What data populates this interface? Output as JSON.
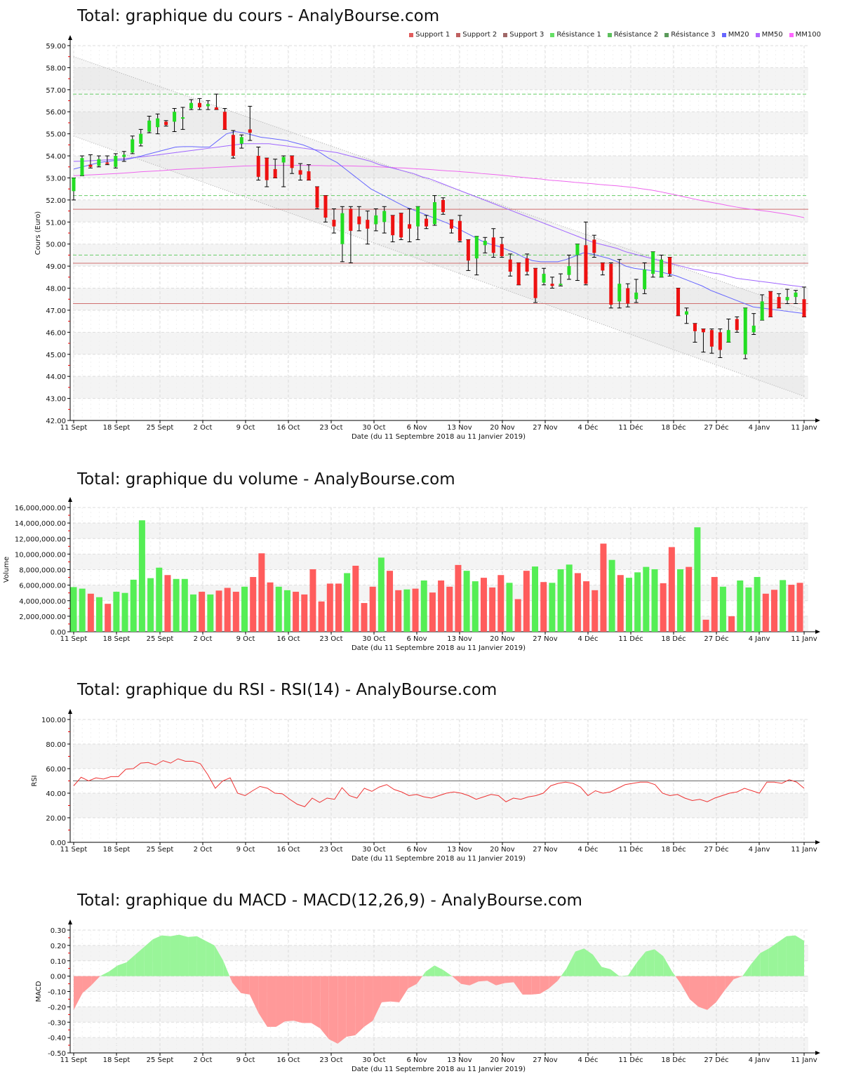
{
  "chart_data": [
    {
      "type": "candlestick",
      "title": "Total: graphique du cours - AnalyBourse.com",
      "xlabel": "Date (du 11 Septembre 2018 au 11 Janvier 2019)",
      "ylabel": "Cours (Euro)",
      "ylim": [
        42,
        59
      ],
      "yticks": [
        "42.00",
        "43.00",
        "44.00",
        "45.00",
        "46.00",
        "47.00",
        "48.00",
        "49.00",
        "50.00",
        "51.00",
        "52.00",
        "53.00",
        "54.00",
        "55.00",
        "56.00",
        "57.00",
        "58.00",
        "59.00"
      ],
      "xticks": [
        "11 Sept",
        "18 Sept",
        "25 Sept",
        "2 Oct",
        "9 Oct",
        "16 Oct",
        "23 Oct",
        "30 Oct",
        "6 Nov",
        "13 Nov",
        "20 Nov",
        "27 Nov",
        "4 Déc",
        "11 Déc",
        "18 Déc",
        "27 Déc",
        "4 Janv",
        "11 Janv"
      ],
      "legend": [
        {
          "name": "Support 1",
          "color": "#e05c5c"
        },
        {
          "name": "Support 2",
          "color": "#c06060"
        },
        {
          "name": "Support 3",
          "color": "#a06868"
        },
        {
          "name": "Résistance 1",
          "color": "#66e066"
        },
        {
          "name": "Résistance 2",
          "color": "#5cc05c"
        },
        {
          "name": "Résistance 3",
          "color": "#5a9a5a"
        },
        {
          "name": "MM20",
          "color": "#6666ff"
        },
        {
          "name": "MM50",
          "color": "#b066ff"
        },
        {
          "name": "MM100",
          "color": "#ff66ff"
        }
      ],
      "levels": {
        "support": [
          51.58,
          49.13,
          47.3
        ],
        "resistance": [
          56.8,
          52.2,
          49.5
        ]
      },
      "candles": [
        [
          52.4,
          53.0,
          52.0,
          53.0
        ],
        [
          53.1,
          53.9,
          53.1,
          54.0
        ],
        [
          53.6,
          53.5,
          53.45,
          54.05
        ],
        [
          53.55,
          53.85,
          53.5,
          54.0
        ],
        [
          53.7,
          53.65,
          53.6,
          54.0
        ],
        [
          53.5,
          54.0,
          53.45,
          54.1
        ],
        [
          53.95,
          54.05,
          53.75,
          54.2
        ],
        [
          54.15,
          54.75,
          54.1,
          54.9
        ],
        [
          54.55,
          55.0,
          54.45,
          55.2
        ],
        [
          55.1,
          55.6,
          55.05,
          55.8
        ],
        [
          55.3,
          55.7,
          55.0,
          55.9
        ],
        [
          55.55,
          55.4,
          55.35,
          55.6
        ],
        [
          55.55,
          56.0,
          55.1,
          56.15
        ],
        [
          55.7,
          55.75,
          55.2,
          56.2
        ],
        [
          56.15,
          56.4,
          56.1,
          56.55
        ],
        [
          56.4,
          56.2,
          56.1,
          56.6
        ],
        [
          56.25,
          56.35,
          56.1,
          56.5
        ],
        [
          56.2,
          56.1,
          56.1,
          56.8
        ],
        [
          56.0,
          55.2,
          55.2,
          56.15
        ],
        [
          54.95,
          54.0,
          53.9,
          55.15
        ],
        [
          54.55,
          54.85,
          54.35,
          54.95
        ],
        [
          55.2,
          55.05,
          54.7,
          56.25
        ],
        [
          54.0,
          53.05,
          52.9,
          54.4
        ],
        [
          53.9,
          52.9,
          52.6,
          53.9
        ],
        [
          53.4,
          53.0,
          53.0,
          53.85
        ],
        [
          53.7,
          53.95,
          52.6,
          54.0
        ],
        [
          54.0,
          53.45,
          53.2,
          54.0
        ],
        [
          53.35,
          53.15,
          52.9,
          53.65
        ],
        [
          53.3,
          52.9,
          52.9,
          53.6
        ],
        [
          52.6,
          51.65,
          51.6,
          52.6
        ],
        [
          52.2,
          51.2,
          51.0,
          52.2
        ],
        [
          51.1,
          50.8,
          50.5,
          51.6
        ],
        [
          50.0,
          51.4,
          49.2,
          51.7
        ],
        [
          51.6,
          50.6,
          49.15,
          51.7
        ],
        [
          51.25,
          50.9,
          50.6,
          51.7
        ],
        [
          51.1,
          50.7,
          50.0,
          51.5
        ],
        [
          50.9,
          51.3,
          50.6,
          51.6
        ],
        [
          51.0,
          51.5,
          50.5,
          51.7
        ],
        [
          51.3,
          50.4,
          50.1,
          51.3
        ],
        [
          51.4,
          50.3,
          50.2,
          51.4
        ],
        [
          50.9,
          50.7,
          50.1,
          51.6
        ],
        [
          50.8,
          51.7,
          50.2,
          51.7
        ],
        [
          51.15,
          50.8,
          50.7,
          51.3
        ],
        [
          50.9,
          51.9,
          50.85,
          52.2
        ],
        [
          52.0,
          51.45,
          51.35,
          52.1
        ],
        [
          51.1,
          50.7,
          50.5,
          51.1
        ],
        [
          51.05,
          50.15,
          50.1,
          51.3
        ],
        [
          50.2,
          49.25,
          48.8,
          50.2
        ],
        [
          49.35,
          50.35,
          48.6,
          50.35
        ],
        [
          49.95,
          50.15,
          49.6,
          50.3
        ],
        [
          50.3,
          49.6,
          49.4,
          50.7
        ],
        [
          50.0,
          49.45,
          49.4,
          50.3
        ],
        [
          49.3,
          48.75,
          48.55,
          49.55
        ],
        [
          49.15,
          48.15,
          48.35,
          49.15
        ],
        [
          49.35,
          48.75,
          48.6,
          49.55
        ],
        [
          48.9,
          47.55,
          47.35,
          48.9
        ],
        [
          48.25,
          48.65,
          48.15,
          48.9
        ],
        [
          48.2,
          48.1,
          48.0,
          48.5
        ],
        [
          48.2,
          48.2,
          48.1,
          48.65
        ],
        [
          48.6,
          49.0,
          48.4,
          49.5
        ],
        [
          49.5,
          50.0,
          48.35,
          50.0
        ],
        [
          49.95,
          48.2,
          48.15,
          51.0
        ],
        [
          50.2,
          49.6,
          49.4,
          50.4
        ],
        [
          49.15,
          48.8,
          48.6,
          49.15
        ],
        [
          49.1,
          47.25,
          47.1,
          49.15
        ],
        [
          47.4,
          48.2,
          47.1,
          49.3
        ],
        [
          48.0,
          47.3,
          47.15,
          48.2
        ],
        [
          47.5,
          47.8,
          47.35,
          48.4
        ],
        [
          47.95,
          48.85,
          47.75,
          49.15
        ],
        [
          48.65,
          49.65,
          48.5,
          49.5
        ],
        [
          48.5,
          49.3,
          48.6,
          49.5
        ],
        [
          49.4,
          48.65,
          48.55,
          49.4
        ],
        [
          48.0,
          46.75,
          46.8,
          48.0
        ],
        [
          46.8,
          46.95,
          46.4,
          47.1
        ],
        [
          46.4,
          46.05,
          45.55,
          46.4
        ],
        [
          46.15,
          46.0,
          45.1,
          46.15
        ],
        [
          46.1,
          45.35,
          45.05,
          46.15
        ],
        [
          46.0,
          45.2,
          44.85,
          46.15
        ],
        [
          45.55,
          46.1,
          45.7,
          46.6
        ],
        [
          46.6,
          46.1,
          46.0,
          46.7
        ],
        [
          45.0,
          47.1,
          44.8,
          47.1
        ],
        [
          46.0,
          46.3,
          45.9,
          46.85
        ],
        [
          46.55,
          47.4,
          47.0,
          47.7
        ],
        [
          47.85,
          46.7,
          47.05,
          47.85
        ],
        [
          47.6,
          47.1,
          47.1,
          47.75
        ],
        [
          47.45,
          47.6,
          47.3,
          47.95
        ],
        [
          47.6,
          47.8,
          47.3,
          47.9
        ],
        [
          47.5,
          46.7,
          46.9,
          48.05
        ]
      ],
      "ma20": [
        53.4,
        53.5,
        53.6,
        53.7,
        53.75,
        53.8,
        53.82,
        53.9,
        54.0,
        54.1,
        54.2,
        54.3,
        54.4,
        54.42,
        54.42,
        54.4,
        54.4,
        54.7,
        55.0,
        55.1,
        55.05,
        54.95,
        54.85,
        54.8,
        54.75,
        54.7,
        54.6,
        54.5,
        54.35,
        54.15,
        53.9,
        53.7,
        53.4,
        53.1,
        52.8,
        52.5,
        52.3,
        52.1,
        51.9,
        51.7,
        51.55,
        51.4,
        51.25,
        51.1,
        50.95,
        50.75,
        50.55,
        50.35,
        50.15,
        50.0,
        49.9,
        49.75,
        49.6,
        49.4,
        49.25,
        49.2,
        49.2,
        49.2,
        49.3,
        49.45,
        49.6,
        49.55,
        49.45,
        49.35,
        49.2,
        49.0,
        48.9,
        48.85,
        48.8,
        48.75,
        48.65,
        48.55,
        48.4,
        48.25,
        48.1,
        47.9,
        47.75,
        47.6,
        47.45,
        47.3,
        47.15,
        47.1,
        47.05,
        47.0,
        46.95,
        46.9,
        46.85
      ],
      "ma50": [
        53.75,
        53.76,
        53.78,
        53.8,
        53.82,
        53.85,
        53.88,
        53.92,
        53.96,
        54.0,
        54.05,
        54.1,
        54.15,
        54.2,
        54.25,
        54.3,
        54.35,
        54.4,
        54.45,
        54.5,
        54.55,
        54.55,
        54.55,
        54.55,
        54.5,
        54.45,
        54.4,
        54.35,
        54.3,
        54.25,
        54.2,
        54.15,
        54.05,
        53.95,
        53.85,
        53.75,
        53.6,
        53.5,
        53.4,
        53.3,
        53.2,
        53.05,
        52.95,
        52.8,
        52.65,
        52.5,
        52.35,
        52.2,
        52.05,
        51.9,
        51.75,
        51.6,
        51.45,
        51.3,
        51.15,
        51.0,
        50.85,
        50.7,
        50.55,
        50.4,
        50.25,
        50.1,
        50.0,
        49.9,
        49.8,
        49.65,
        49.55,
        49.45,
        49.35,
        49.25,
        49.15,
        49.05,
        48.95,
        48.85,
        48.8,
        48.7,
        48.65,
        48.55,
        48.45,
        48.4,
        48.35,
        48.3,
        48.25,
        48.2,
        48.15,
        48.1,
        48.05
      ],
      "ma100": [
        53.1,
        53.12,
        53.14,
        53.16,
        53.18,
        53.2,
        53.22,
        53.25,
        53.28,
        53.3,
        53.32,
        53.35,
        53.38,
        53.4,
        53.42,
        53.44,
        53.46,
        53.48,
        53.5,
        53.52,
        53.54,
        53.55,
        53.56,
        53.57,
        53.57,
        53.57,
        53.57,
        53.57,
        53.56,
        53.56,
        53.55,
        53.55,
        53.55,
        53.54,
        53.53,
        53.52,
        53.5,
        53.48,
        53.46,
        53.45,
        53.42,
        53.4,
        53.38,
        53.35,
        53.32,
        53.3,
        53.27,
        53.24,
        53.2,
        53.17,
        53.14,
        53.1,
        53.06,
        53.02,
        52.98,
        52.95,
        52.9,
        52.87,
        52.84,
        52.8,
        52.77,
        52.74,
        52.7,
        52.67,
        52.64,
        52.6,
        52.56,
        52.5,
        52.45,
        52.38,
        52.3,
        52.22,
        52.13,
        52.05,
        51.97,
        51.9,
        51.83,
        51.75,
        51.68,
        51.62,
        51.57,
        51.52,
        51.47,
        51.41,
        51.35,
        51.28,
        51.2
      ]
    },
    {
      "type": "bar",
      "title": "Total: graphique du volume - AnalyBourse.com",
      "xlabel": "Date (du 11 Septembre 2018 au 11 Janvier 2019)",
      "ylabel": "Volume",
      "ylim": [
        0,
        16000000
      ],
      "yticks": [
        "0.00",
        "2,000,000.00",
        "4,000,000.00",
        "6,000,000.00",
        "8,000,000.00",
        "10,000,000.00",
        "12,000,000.00",
        "14,000,000.00",
        "16,000,000.00"
      ],
      "values": [
        5750000,
        5550000,
        4900000,
        4450000,
        3600000,
        5150000,
        5000000,
        6700000,
        14350000,
        6900000,
        8250000,
        7300000,
        6800000,
        6800000,
        4800000,
        5150000,
        4800000,
        5300000,
        5650000,
        5150000,
        5800000,
        7050000,
        10100000,
        6350000,
        5800000,
        5350000,
        5150000,
        4800000,
        8050000,
        3900000,
        6200000,
        6200000,
        7550000,
        8500000,
        3700000,
        5800000,
        9550000,
        7850000,
        5350000,
        5450000,
        5550000,
        6600000,
        5050000,
        6600000,
        5800000,
        8600000,
        7850000,
        6500000,
        6950000,
        5700000,
        7300000,
        6300000,
        4200000,
        7850000,
        8400000,
        6400000,
        6300000,
        8050000,
        8650000,
        7550000,
        6500000,
        5350000,
        11350000,
        9250000,
        7300000,
        6950000,
        7650000,
        8350000,
        8050000,
        6250000,
        10900000,
        8050000,
        8350000,
        13450000,
        1550000,
        7050000,
        5800000,
        2000000,
        6600000,
        5700000,
        7050000,
        4900000,
        5400000,
        6650000,
        6050000,
        6300000
      ],
      "colors": [
        "g",
        "g",
        "r",
        "g",
        "r",
        "g",
        "g",
        "g",
        "g",
        "g",
        "g",
        "r",
        "g",
        "g",
        "g",
        "r",
        "g",
        "r",
        "r",
        "r",
        "g",
        "r",
        "r",
        "r",
        "g",
        "g",
        "r",
        "r",
        "r",
        "r",
        "r",
        "r",
        "g",
        "r",
        "r",
        "r",
        "g",
        "r",
        "r",
        "g",
        "r",
        "g",
        "r",
        "r",
        "r",
        "r",
        "g",
        "g",
        "r",
        "r",
        "r",
        "g",
        "r",
        "r",
        "g",
        "r",
        "g",
        "g",
        "g",
        "r",
        "r",
        "r",
        "r",
        "g",
        "r",
        "g",
        "g",
        "g",
        "g",
        "r",
        "r",
        "g",
        "r",
        "g",
        "r",
        "r",
        "g",
        "r",
        "g",
        "g",
        "g",
        "r",
        "r",
        "g",
        "r",
        "r"
      ]
    },
    {
      "type": "line",
      "title": "Total: graphique du RSI - RSI(14) - AnalyBourse.com",
      "xlabel": "Date (du 11 Septembre 2018 au 11 Janvier 2019)",
      "ylabel": "RSI",
      "ylim": [
        0,
        100
      ],
      "yticks": [
        "0.00",
        "20.00",
        "40.00",
        "60.00",
        "80.00",
        "100.00"
      ],
      "reference_line": 50,
      "values": [
        46,
        53,
        50,
        52.5,
        51.5,
        53.5,
        53.5,
        59.5,
        60,
        64.5,
        65,
        63,
        66.5,
        64.5,
        68,
        66,
        66,
        64,
        55,
        44,
        50,
        52.5,
        40,
        38,
        42,
        45.5,
        44,
        40,
        39.5,
        35,
        31,
        29,
        36,
        32.5,
        36,
        35,
        44.5,
        38,
        36,
        44,
        41.5,
        45,
        47,
        43,
        41,
        38,
        39,
        37,
        36,
        38,
        40,
        41,
        40,
        38,
        35,
        37,
        39,
        38,
        33,
        36,
        35,
        37,
        38,
        40,
        46,
        48,
        49,
        48,
        45,
        38,
        42,
        40,
        41,
        44,
        47,
        48,
        49,
        49,
        47,
        40,
        38,
        39,
        36,
        34,
        35,
        33,
        36,
        38,
        40,
        41,
        44,
        42,
        40,
        49,
        49,
        48,
        51,
        49,
        44
      ]
    },
    {
      "type": "area",
      "title": "Total: graphique du MACD - MACD(12,26,9) - AnalyBourse.com",
      "xlabel": "Date (du 11 Septembre 2018 au 11 Janvier 2019)",
      "ylabel": "MACD",
      "ylim": [
        -0.5,
        0.3
      ],
      "yticks": [
        "-0.50",
        "-0.40",
        "-0.30",
        "-0.20",
        "-0.10",
        "0.00",
        "0.10",
        "0.20",
        "0.30"
      ],
      "values": [
        -0.22,
        -0.11,
        -0.06,
        0.0,
        0.03,
        0.07,
        0.09,
        0.14,
        0.19,
        0.24,
        0.265,
        0.26,
        0.27,
        0.255,
        0.26,
        0.23,
        0.2,
        0.1,
        -0.04,
        -0.11,
        -0.12,
        -0.24,
        -0.33,
        -0.33,
        -0.295,
        -0.29,
        -0.305,
        -0.305,
        -0.34,
        -0.41,
        -0.44,
        -0.395,
        -0.385,
        -0.33,
        -0.29,
        -0.17,
        -0.165,
        -0.17,
        -0.08,
        -0.05,
        0.03,
        0.07,
        0.04,
        0.0,
        -0.05,
        -0.06,
        -0.035,
        -0.03,
        -0.06,
        -0.045,
        -0.04,
        -0.12,
        -0.12,
        -0.115,
        -0.08,
        -0.03,
        0.05,
        0.16,
        0.18,
        0.14,
        0.06,
        0.045,
        0.0,
        0.005,
        0.09,
        0.16,
        0.175,
        0.13,
        0.03,
        -0.05,
        -0.15,
        -0.2,
        -0.22,
        -0.17,
        -0.09,
        -0.02,
        0.0,
        0.08,
        0.15,
        0.18,
        0.22,
        0.26,
        0.265,
        0.23
      ]
    }
  ]
}
